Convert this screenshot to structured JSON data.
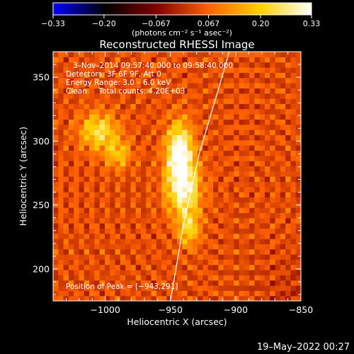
{
  "chart_data": {
    "type": "heatmap",
    "title": "Reconstructed RHESSI Image",
    "xlabel": "Heliocentric X (arcsec)",
    "ylabel": "Heliocentric Y (arcsec)",
    "xlim": [
      -1040,
      -850
    ],
    "ylim": [
      175,
      370
    ],
    "x_ticks": [
      -1000,
      -950,
      -900,
      -850
    ],
    "x_tick_labels": [
      "−1000",
      "−950",
      "−900",
      "−850"
    ],
    "y_ticks": [
      200,
      250,
      300,
      350
    ],
    "y_tick_labels": [
      "200",
      "250",
      "300",
      "350"
    ],
    "colorbar": {
      "range": [
        -0.33,
        0.33
      ],
      "ticks": [
        -0.33,
        -0.2,
        -0.067,
        0.067,
        0.2,
        0.33
      ],
      "tick_labels": [
        "−0.33",
        "−0.20",
        "−0.067",
        "0.067",
        "0.20",
        "0.33"
      ],
      "unit_label": "(photons cm⁻² s⁻¹ asec⁻²)",
      "colormap": [
        "#0000ff",
        "#000000",
        "#800000",
        "#ff6000",
        "#ffd000",
        "#ffffff"
      ]
    },
    "annotations": {
      "time_range": "3–Nov–2014 09:57:40.000 to 09:58:40.000",
      "detectors": "Detectors: 3F 6F 9F, Att 0",
      "energy": "Energy Range: 3.0 – 6.0 keV",
      "clean": "Clean     Total counts: 4.20E+03",
      "peak": "Position of Peak = [−943,291]"
    },
    "peak": {
      "x": -943,
      "y": 291
    },
    "limb_curve": [
      [
        -950,
        175
      ],
      [
        -940,
        235
      ],
      [
        -928,
        290
      ],
      [
        -912,
        345
      ],
      [
        -905,
        370
      ]
    ],
    "sources": [
      {
        "x": -943,
        "y": 291,
        "amp": 0.33,
        "sx": 7,
        "sy": 16
      },
      {
        "x": -940,
        "y": 262,
        "amp": 0.25,
        "sx": 9,
        "sy": 14
      },
      {
        "x": -936,
        "y": 232,
        "amp": 0.17,
        "sx": 6,
        "sy": 10
      },
      {
        "x": -1005,
        "y": 308,
        "amp": 0.2,
        "sx": 10,
        "sy": 10
      },
      {
        "x": -990,
        "y": 290,
        "amp": 0.14,
        "sx": 7,
        "sy": 8
      }
    ]
  },
  "footer": {
    "date": "19–May–2022 00:27"
  }
}
